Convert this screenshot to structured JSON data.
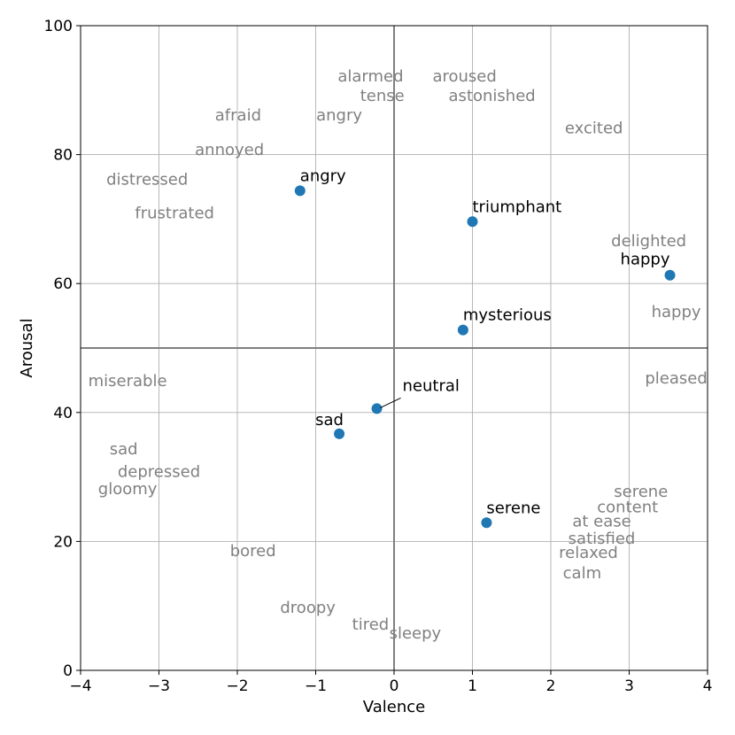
{
  "chart_data": {
    "type": "scatter",
    "title": "",
    "xlabel": "Valence",
    "ylabel": "Arousal",
    "xlim": [
      -4,
      4
    ],
    "ylim": [
      0,
      100
    ],
    "x_ticks": [
      -4,
      -3,
      -2,
      -1,
      0,
      1,
      2,
      3,
      4
    ],
    "x_tick_labels": [
      "−4",
      "−3",
      "−2",
      "−1",
      "0",
      "1",
      "2",
      "3",
      "4"
    ],
    "y_ticks": [
      0,
      20,
      40,
      60,
      80,
      100
    ],
    "y_tick_labels": [
      "0",
      "20",
      "40",
      "60",
      "80",
      "100"
    ],
    "grid": true,
    "reference_lines": {
      "x": 0,
      "y": 50
    },
    "colors": {
      "point": "#1f77b4",
      "reference_text": "#808080",
      "grid": "#b0b0b0",
      "quadrant_line": "#808080"
    },
    "points": [
      {
        "label": "angry",
        "x": -1.2,
        "y": 74.4
      },
      {
        "label": "triumphant",
        "x": 1.0,
        "y": 69.6
      },
      {
        "label": "happy",
        "x": 3.52,
        "y": 61.3
      },
      {
        "label": "mysterious",
        "x": 0.88,
        "y": 52.8
      },
      {
        "label": "neutral",
        "x": -0.22,
        "y": 40.6
      },
      {
        "label": "sad",
        "x": -0.7,
        "y": 36.7
      },
      {
        "label": "serene",
        "x": 1.18,
        "y": 22.9
      }
    ],
    "reference_words": [
      {
        "text": "alarmed",
        "x": -0.3,
        "y": 92
      },
      {
        "text": "aroused",
        "x": 0.9,
        "y": 92
      },
      {
        "text": "tense",
        "x": -0.15,
        "y": 89
      },
      {
        "text": "astonished",
        "x": 1.25,
        "y": 89
      },
      {
        "text": "afraid",
        "x": -1.99,
        "y": 86
      },
      {
        "text": "angry",
        "x": -0.7,
        "y": 86
      },
      {
        "text": "excited",
        "x": 2.55,
        "y": 84
      },
      {
        "text": "annoyed",
        "x": -2.1,
        "y": 80.6
      },
      {
        "text": "distressed",
        "x": -3.15,
        "y": 76
      },
      {
        "text": "frustrated",
        "x": -2.8,
        "y": 70.8
      },
      {
        "text": "delighted",
        "x": 3.25,
        "y": 66.5
      },
      {
        "text": "happy",
        "x": 3.6,
        "y": 55.5
      },
      {
        "text": "pleased",
        "x": 3.6,
        "y": 45.2
      },
      {
        "text": "miserable",
        "x": -3.4,
        "y": 44.8
      },
      {
        "text": "sad",
        "x": -3.45,
        "y": 34.2
      },
      {
        "text": "depressed",
        "x": -3.0,
        "y": 30.7
      },
      {
        "text": "gloomy",
        "x": -3.4,
        "y": 28.0
      },
      {
        "text": "serene",
        "x": 3.15,
        "y": 27.6
      },
      {
        "text": "content",
        "x": 2.98,
        "y": 25.2
      },
      {
        "text": "at ease",
        "x": 2.65,
        "y": 23.0
      },
      {
        "text": "satisfied",
        "x": 2.65,
        "y": 20.3
      },
      {
        "text": "relaxed",
        "x": 2.48,
        "y": 18.1
      },
      {
        "text": "calm",
        "x": 2.4,
        "y": 15.0
      },
      {
        "text": "bored",
        "x": -1.8,
        "y": 18.4
      },
      {
        "text": "droopy",
        "x": -1.1,
        "y": 9.6
      },
      {
        "text": "tired",
        "x": -0.3,
        "y": 7.0
      },
      {
        "text": "sleepy",
        "x": 0.27,
        "y": 5.6
      }
    ]
  }
}
